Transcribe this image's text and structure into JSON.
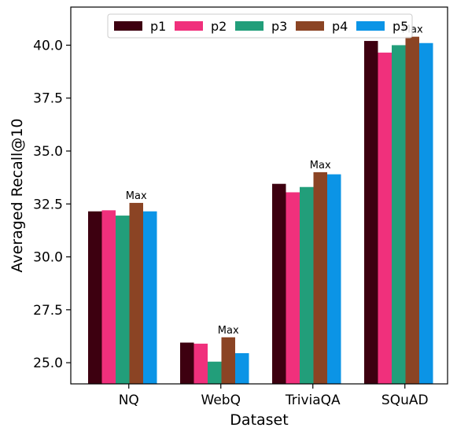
{
  "chart_data": {
    "type": "bar",
    "xlabel": "Dataset",
    "ylabel": "Averaged Recall@10",
    "categories": [
      "NQ",
      "WebQ",
      "TriviaQA",
      "SQuAD"
    ],
    "ylim": [
      24.0,
      41.8
    ],
    "yticks": [
      "25.0",
      "27.5",
      "30.0",
      "32.5",
      "35.0",
      "37.5",
      "40.0"
    ],
    "legend_position": "top-center",
    "series": [
      {
        "name": "p1",
        "color": "#3d0010",
        "values": [
          32.15,
          25.95,
          33.45,
          40.2
        ]
      },
      {
        "name": "p2",
        "color": "#f0307c",
        "values": [
          32.2,
          25.9,
          33.05,
          39.65
        ]
      },
      {
        "name": "p3",
        "color": "#229e7a",
        "values": [
          31.95,
          25.05,
          33.3,
          40.0
        ]
      },
      {
        "name": "p4",
        "color": "#8b4424",
        "values": [
          32.55,
          26.2,
          34.0,
          40.4
        ]
      },
      {
        "name": "p5",
        "color": "#0b94e6",
        "values": [
          32.15,
          25.45,
          33.9,
          40.1
        ]
      }
    ],
    "annotations": [
      {
        "text": "Max",
        "category": "NQ",
        "series": "p4"
      },
      {
        "text": "Max",
        "category": "WebQ",
        "series": "p4"
      },
      {
        "text": "Max",
        "category": "TriviaQA",
        "series": "p4"
      },
      {
        "text": "Max",
        "category": "SQuAD",
        "series": "p4"
      }
    ]
  }
}
